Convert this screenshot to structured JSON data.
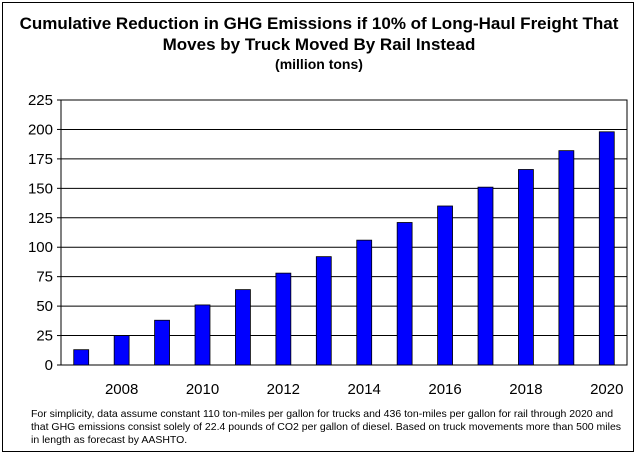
{
  "chart_data": {
    "type": "bar",
    "title": "Cumulative Reduction in GHG Emissions if 10% of Long-Haul Freight That Moves by Truck Moved By Rail Instead",
    "subtitle": "(million tons)",
    "xlabel": "",
    "ylabel": "",
    "categories": [
      "2007",
      "2008",
      "2009",
      "2010",
      "2011",
      "2012",
      "2013",
      "2014",
      "2015",
      "2016",
      "2017",
      "2018",
      "2019",
      "2020"
    ],
    "tick_labels_shown": [
      "2008",
      "2010",
      "2012",
      "2014",
      "2016",
      "2018",
      "2020"
    ],
    "values": [
      13,
      25,
      38,
      51,
      64,
      78,
      92,
      106,
      121,
      135,
      151,
      166,
      182,
      198
    ],
    "ylim": [
      0,
      225
    ],
    "yticks": [
      0,
      25,
      50,
      75,
      100,
      125,
      150,
      175,
      200,
      225
    ],
    "grid": true,
    "bar_color": "#0000ff",
    "legend": "none"
  },
  "footnote": "For simplicity, data assume constant 110 ton-miles per gallon for trucks and 436 ton-miles per gallon for rail through 2020 and that GHG emissions consist solely of 22.4 pounds of CO2 per gallon of diesel. Based on truck movements more than 500 miles in length as forecast by AASHTO."
}
